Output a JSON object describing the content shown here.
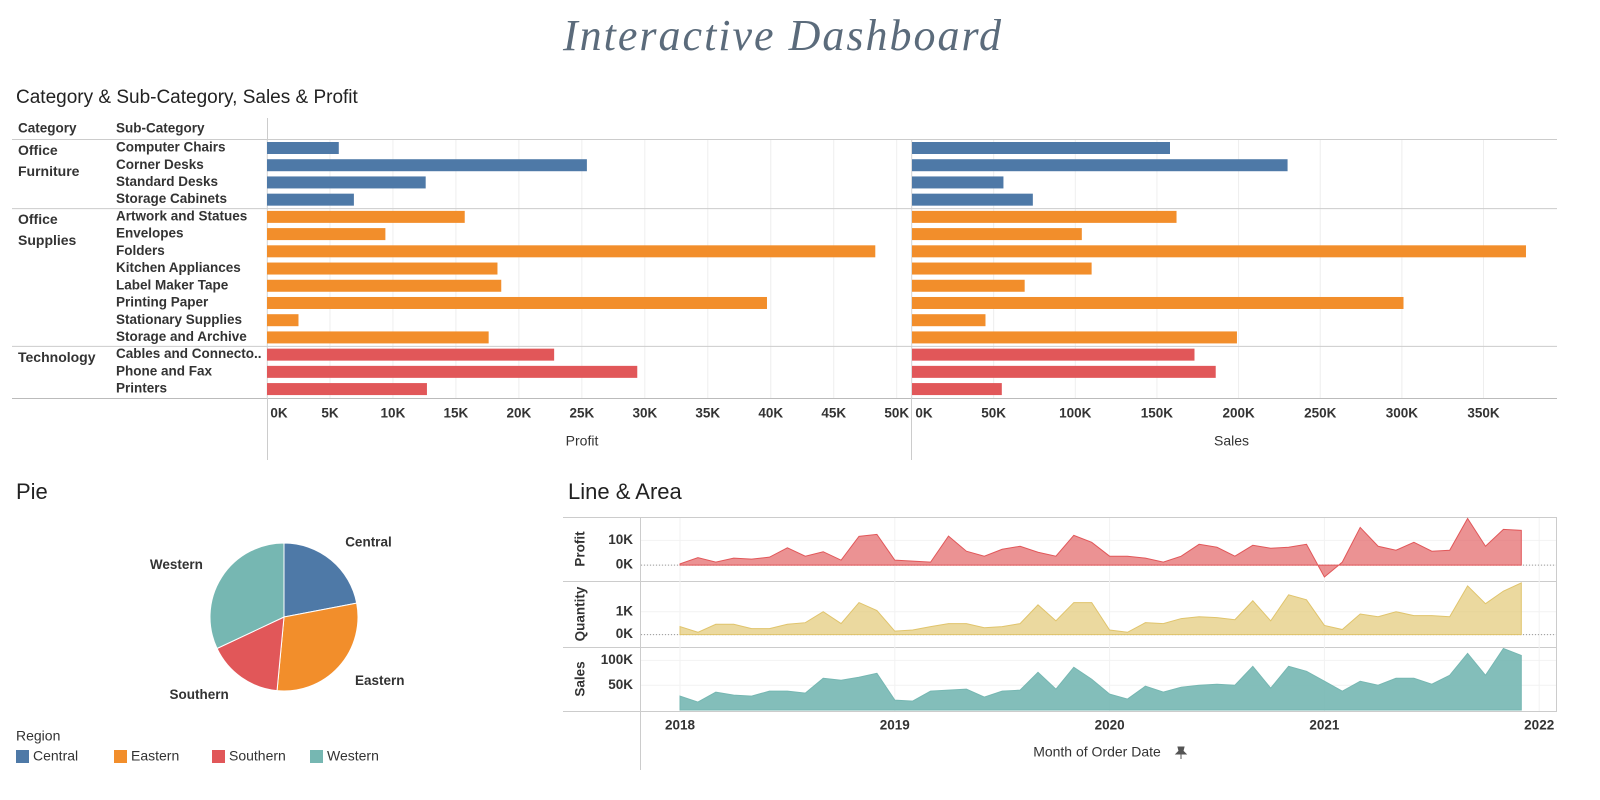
{
  "title": "Interactive Dashboard",
  "chart_data": [
    {
      "type": "bar",
      "title": "Category & Sub-Category, Sales & Profit",
      "category_header": "Category",
      "subcategory_header": "Sub-Category",
      "groups": [
        {
          "name": "Office Furniture",
          "color": "#4e79a7",
          "categories": [
            "Computer Chairs",
            "Corner Desks",
            "Standard Desks",
            "Storage Cabinets"
          ]
        },
        {
          "name": "Office Supplies",
          "color": "#f28e2b",
          "categories": [
            "Artwork and Statues",
            "Envelopes",
            "Folders",
            "Kitchen Appliances",
            "Label Maker Tape",
            "Printing Paper",
            "Stationary Supplies",
            "Storage and Archive"
          ]
        },
        {
          "name": "Technology",
          "color": "#e15759",
          "categories": [
            "Cables and Connecto..",
            "Phone and Fax",
            "Printers"
          ]
        }
      ],
      "series": [
        {
          "name": "Profit",
          "values": [
            5700,
            25400,
            12600,
            6900,
            15700,
            9400,
            48300,
            18300,
            18600,
            39700,
            2500,
            17600,
            22800,
            29400,
            12700
          ],
          "xlim": [
            0,
            50500
          ],
          "xticks": [
            {
              "value": 0,
              "label": "0K"
            },
            {
              "value": 5000,
              "label": "5K"
            },
            {
              "value": 10000,
              "label": "10K"
            },
            {
              "value": 15000,
              "label": "15K"
            },
            {
              "value": 20000,
              "label": "20K"
            },
            {
              "value": 25000,
              "label": "25K"
            },
            {
              "value": 30000,
              "label": "30K"
            },
            {
              "value": 35000,
              "label": "35K"
            },
            {
              "value": 40000,
              "label": "40K"
            },
            {
              "value": 45000,
              "label": "45K"
            },
            {
              "value": 50000,
              "label": "50K"
            }
          ]
        },
        {
          "name": "Sales",
          "values": [
            158000,
            230000,
            56000,
            74000,
            162000,
            104000,
            376000,
            110000,
            69000,
            301000,
            45000,
            199000,
            173000,
            186000,
            55000
          ],
          "xlim": [
            0,
            395000
          ],
          "xticks": [
            {
              "value": 0,
              "label": "0K"
            },
            {
              "value": 50000,
              "label": "50K"
            },
            {
              "value": 100000,
              "label": "100K"
            },
            {
              "value": 150000,
              "label": "150K"
            },
            {
              "value": 200000,
              "label": "200K"
            },
            {
              "value": 250000,
              "label": "250K"
            },
            {
              "value": 300000,
              "label": "300K"
            },
            {
              "value": 350000,
              "label": "350K"
            }
          ]
        }
      ],
      "grid": true
    },
    {
      "type": "pie",
      "title": "Pie",
      "legend_title": "Region",
      "categories": [
        "Central",
        "Eastern",
        "Southern",
        "Western"
      ],
      "values": [
        22,
        29.5,
        16.5,
        32
      ],
      "colors": [
        "#4e79a7",
        "#f28e2b",
        "#e15759",
        "#76b7b2"
      ]
    },
    {
      "type": "area",
      "title": "Line & Area",
      "x_label": "Month of Order Date",
      "x": [
        "2018-01",
        "2018-02",
        "2018-03",
        "2018-04",
        "2018-05",
        "2018-06",
        "2018-07",
        "2018-08",
        "2018-09",
        "2018-10",
        "2018-11",
        "2018-12",
        "2019-01",
        "2019-02",
        "2019-03",
        "2019-04",
        "2019-05",
        "2019-06",
        "2019-07",
        "2019-08",
        "2019-09",
        "2019-10",
        "2019-11",
        "2019-12",
        "2020-01",
        "2020-02",
        "2020-03",
        "2020-04",
        "2020-05",
        "2020-06",
        "2020-07",
        "2020-08",
        "2020-09",
        "2020-10",
        "2020-11",
        "2020-12",
        "2021-01",
        "2021-02",
        "2021-03",
        "2021-04",
        "2021-05",
        "2021-06",
        "2021-07",
        "2021-08",
        "2021-09",
        "2021-10",
        "2021-11",
        "2021-12"
      ],
      "xticks": [
        "2018",
        "2019",
        "2020",
        "2021",
        "2022"
      ],
      "series": [
        {
          "name": "Profit",
          "color": "#e15759",
          "ylim": [
            -6000,
            19000
          ],
          "yticks": [
            {
              "value": 0,
              "label": "0K"
            },
            {
              "value": 10000,
              "label": "10K"
            }
          ],
          "values": [
            500,
            3000,
            1200,
            2800,
            2400,
            3200,
            7000,
            3600,
            5400,
            2000,
            11600,
            12400,
            2000,
            1600,
            1200,
            11700,
            5600,
            3600,
            6400,
            7600,
            5200,
            3600,
            12000,
            9200,
            3600,
            3600,
            2800,
            1200,
            3600,
            8400,
            7200,
            3600,
            8000,
            6800,
            7200,
            8400,
            -4800,
            1200,
            15200,
            7600,
            6000,
            9200,
            5600,
            6000,
            18800,
            7600,
            14400,
            14000
          ]
        },
        {
          "name": "Quantity",
          "color": "#e0c46c",
          "ylim": [
            -500,
            2300
          ],
          "yticks": [
            {
              "value": 0,
              "label": "0K"
            },
            {
              "value": 1000,
              "label": "1K"
            }
          ],
          "values": [
            350,
            100,
            450,
            450,
            260,
            260,
            450,
            520,
            1000,
            480,
            1400,
            1050,
            150,
            200,
            350,
            480,
            480,
            300,
            350,
            480,
            1300,
            600,
            1400,
            1400,
            200,
            100,
            520,
            480,
            700,
            780,
            740,
            650,
            1480,
            600,
            1740,
            1520,
            400,
            220,
            900,
            780,
            1000,
            830,
            830,
            780,
            2130,
            1350,
            1900,
            2260
          ]
        },
        {
          "name": "Sales",
          "color": "#76b7b2",
          "ylim": [
            0,
            125000
          ],
          "yticks": [
            {
              "value": 50000,
              "label": "50K"
            },
            {
              "value": 100000,
              "label": "100K"
            }
          ],
          "values": [
            28000,
            16000,
            36000,
            30000,
            28000,
            38000,
            38000,
            34000,
            64000,
            60000,
            66000,
            74000,
            20000,
            18000,
            38000,
            40000,
            42000,
            26000,
            38000,
            40000,
            76000,
            42000,
            86000,
            62000,
            32000,
            22000,
            48000,
            36000,
            46000,
            50000,
            52000,
            50000,
            88000,
            44000,
            88000,
            78000,
            58000,
            38000,
            58000,
            50000,
            64000,
            64000,
            52000,
            70000,
            114000,
            70000,
            124000,
            110000
          ]
        }
      ]
    }
  ]
}
